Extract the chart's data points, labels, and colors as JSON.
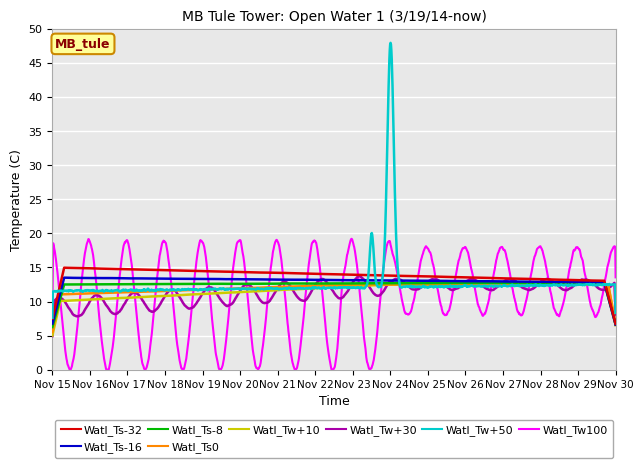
{
  "title": "MB Tule Tower: Open Water 1 (3/19/14-now)",
  "xlabel": "Time",
  "ylabel": "Temperature (C)",
  "ylim": [
    0,
    50
  ],
  "xlim": [
    0,
    15
  ],
  "background_color": "#ffffff",
  "plot_bg": "#e8e8e8",
  "grid_color": "#ffffff",
  "series_order": [
    "Watl_Ts-32",
    "Watl_Ts-16",
    "Watl_Ts-8",
    "Watl_Ts0",
    "Watl_Tw+10",
    "Watl_Tw+30",
    "Watl_Tw+50",
    "Watl_Tw100"
  ],
  "series": {
    "Watl_Ts-32": {
      "color": "#dd0000",
      "linewidth": 1.8
    },
    "Watl_Ts-16": {
      "color": "#0000cc",
      "linewidth": 1.8
    },
    "Watl_Ts-8": {
      "color": "#00bb00",
      "linewidth": 1.8
    },
    "Watl_Ts0": {
      "color": "#ff8800",
      "linewidth": 1.8
    },
    "Watl_Tw+10": {
      "color": "#cccc00",
      "linewidth": 1.8
    },
    "Watl_Tw+30": {
      "color": "#aa00aa",
      "linewidth": 1.8
    },
    "Watl_Tw+50": {
      "color": "#00cccc",
      "linewidth": 1.8
    },
    "Watl_Tw100": {
      "color": "#ff00ff",
      "linewidth": 1.5
    }
  },
  "xtick_labels": [
    "Nov 15",
    "Nov 16",
    "Nov 17",
    "Nov 18",
    "Nov 19",
    "Nov 20",
    "Nov 21",
    "Nov 22",
    "Nov 23",
    "Nov 24",
    "Nov 25",
    "Nov 26",
    "Nov 27",
    "Nov 28",
    "Nov 29",
    "Nov 30"
  ],
  "xtick_positions": [
    0,
    1,
    2,
    3,
    4,
    5,
    6,
    7,
    8,
    9,
    10,
    11,
    12,
    13,
    14,
    15
  ],
  "ytick_positions": [
    0,
    5,
    10,
    15,
    20,
    25,
    30,
    35,
    40,
    45,
    50
  ],
  "legend_box_label": "MB_tule",
  "legend_box_color": "#ffff99",
  "legend_box_border": "#cc8800",
  "legend_row1": [
    "Watl_Ts-32",
    "Watl_Ts-16",
    "Watl_Ts-8",
    "Watl_Ts0",
    "Watl_Tw+10",
    "Watl_Tw+30"
  ],
  "legend_row2": [
    "Watl_Tw+50",
    "Watl_Tw100"
  ]
}
